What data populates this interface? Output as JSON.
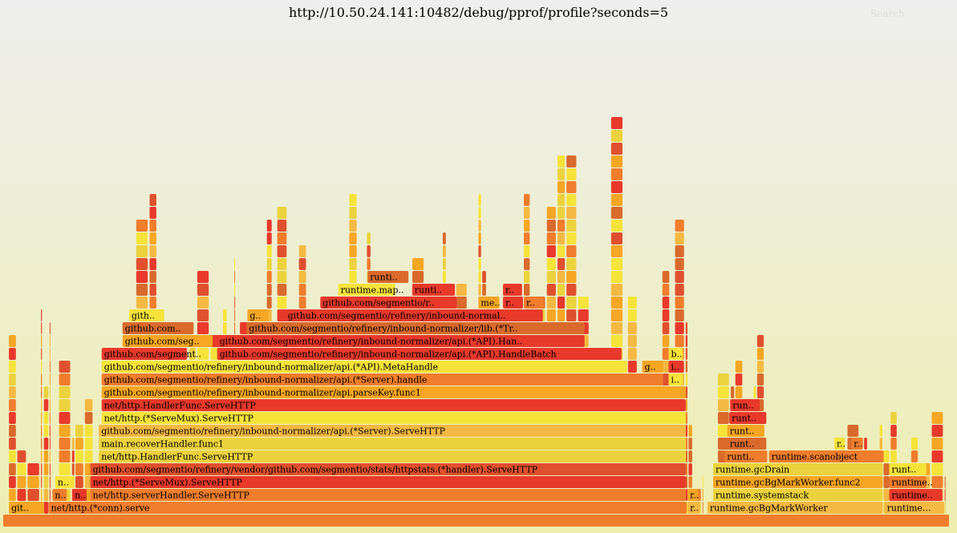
{
  "header": {
    "title": "http://10.50.24.141:10482/debug/pprof/profile?seconds=5",
    "search_label": "Search"
  },
  "colors": {
    "bg_top": "#eeeeee",
    "bg_bottom": "#eeeeb0",
    "palette": [
      "#f5e33a",
      "#f5a623",
      "#ef7d2c",
      "#e8392b",
      "#d96a2c",
      "#ebd23d",
      "#f4b942",
      "#e0502e"
    ]
  },
  "chart_data": {
    "type": "flamegraph",
    "x_unit": "percent_of_samples",
    "labeled_frames": [
      {
        "depth": 0,
        "x": 0.0,
        "w": 100.0,
        "label": "",
        "color": "#ef7d2c"
      },
      {
        "depth": 1,
        "x": 0.6,
        "w": 3.8,
        "label": "git..",
        "color": "#f5a623"
      },
      {
        "depth": 1,
        "x": 4.8,
        "w": 67.5,
        "label": "net/http.(*conn).serve",
        "color": "#ef7d2c"
      },
      {
        "depth": 1,
        "x": 72.3,
        "w": 1.4,
        "label": "r..",
        "color": "#f4b942"
      },
      {
        "depth": 1,
        "x": 74.4,
        "w": 18.6,
        "label": "runtime.gcBgMarkWorker",
        "color": "#f4b942"
      },
      {
        "depth": 1,
        "x": 93.1,
        "w": 6.4,
        "label": "runtime...",
        "color": "#f4b942"
      },
      {
        "depth": 2,
        "x": 5.2,
        "w": 1.6,
        "label": "n..",
        "color": "#ef7d2c"
      },
      {
        "depth": 2,
        "x": 7.3,
        "w": 1.6,
        "label": "n..",
        "color": "#e8392b"
      },
      {
        "depth": 2,
        "x": 9.2,
        "w": 63.0,
        "label": "net/http.serverHandler.ServeHTTP",
        "color": "#ef7d2c"
      },
      {
        "depth": 2,
        "x": 72.3,
        "w": 1.2,
        "label": "r..",
        "color": "#f5a623"
      },
      {
        "depth": 2,
        "x": 75.0,
        "w": 18.0,
        "label": "runtime.systemstack",
        "color": "#ebd23d"
      },
      {
        "depth": 2,
        "x": 93.6,
        "w": 5.7,
        "label": "runtime..",
        "color": "#e8392b"
      },
      {
        "depth": 3,
        "x": 5.5,
        "w": 1.9,
        "label": "n..",
        "color": "#f5e33a"
      },
      {
        "depth": 3,
        "x": 9.2,
        "w": 63.0,
        "label": "net/http.(*ServeMux).ServeHTTP",
        "color": "#e8392b"
      },
      {
        "depth": 3,
        "x": 75.0,
        "w": 18.0,
        "label": "runtime.gcBgMarkWorker.func2",
        "color": "#f5a623"
      },
      {
        "depth": 3,
        "x": 93.6,
        "w": 4.0,
        "label": "runtime..",
        "color": "#ef7d2c"
      },
      {
        "depth": 4,
        "x": 9.2,
        "w": 63.0,
        "label": "github.com/segmentio/refinery/vendor/github.com/segmentio/stats/httpstats.(*handler).ServeHTTP",
        "color": "#e0502e"
      },
      {
        "depth": 4,
        "x": 75.0,
        "w": 18.0,
        "label": "runtime.gcDrain",
        "color": "#ebd23d"
      },
      {
        "depth": 4,
        "x": 93.6,
        "w": 4.0,
        "label": "runt..",
        "color": "#f5e33a"
      },
      {
        "depth": 5,
        "x": 10.1,
        "w": 62.1,
        "label": "net/http.HandlerFunc.ServeHTTP",
        "color": "#ebd23d"
      },
      {
        "depth": 5,
        "x": 76.2,
        "w": 4.6,
        "label": "runti..",
        "color": "#ef7d2c"
      },
      {
        "depth": 5,
        "x": 80.9,
        "w": 12.2,
        "label": "runtime.scanobject",
        "color": "#ef7d2c"
      },
      {
        "depth": 6,
        "x": 10.1,
        "w": 62.1,
        "label": "main.recoverHandler.func1",
        "color": "#ebd23d"
      },
      {
        "depth": 6,
        "x": 76.5,
        "w": 4.2,
        "label": "runt..",
        "color": "#d96a2c"
      },
      {
        "depth": 6,
        "x": 87.8,
        "w": 1.2,
        "label": "r..",
        "color": "#f5e33a"
      },
      {
        "depth": 6,
        "x": 89.6,
        "w": 1.3,
        "label": "r..",
        "color": "#ef7d2c"
      },
      {
        "depth": 7,
        "x": 10.1,
        "w": 62.1,
        "label": "github.com/segmentio/refinery/inbound-normalizer/api.(*Server).ServeHTTP",
        "color": "#f4b942"
      },
      {
        "depth": 7,
        "x": 76.5,
        "w": 4.0,
        "label": "runt..",
        "color": "#f5a623"
      },
      {
        "depth": 8,
        "x": 10.4,
        "w": 61.8,
        "label": "net/http.(*ServeMux).ServeHTTP",
        "color": "#f5e33a"
      },
      {
        "depth": 8,
        "x": 76.7,
        "w": 4.0,
        "label": "runt..",
        "color": "#e8392b"
      },
      {
        "depth": 9,
        "x": 10.4,
        "w": 61.8,
        "label": "net/http.HandlerFunc.ServeHTTP",
        "color": "#e8392b"
      },
      {
        "depth": 9,
        "x": 76.8,
        "w": 3.2,
        "label": "run..",
        "color": "#e8392b"
      },
      {
        "depth": 10,
        "x": 10.4,
        "w": 61.8,
        "label": "github.com/segmentio/refinery/inbound-normalizer/api.parseKey.func1",
        "color": "#f5a623"
      },
      {
        "depth": 11,
        "x": 10.4,
        "w": 59.4,
        "label": "github.com/segmentio/refinery/inbound-normalizer/api.(*Server).handle",
        "color": "#ef7d2c"
      },
      {
        "depth": 11,
        "x": 70.3,
        "w": 1.6,
        "label": "i..",
        "color": "#f5e33a"
      },
      {
        "depth": 12,
        "x": 10.4,
        "w": 55.6,
        "label": "github.com/segmentio/refinery/inbound-normalizer/api.(*API).MetaHandle",
        "color": "#f5e33a"
      },
      {
        "depth": 12,
        "x": 67.5,
        "w": 2.3,
        "label": "g..",
        "color": "#f5a623"
      },
      {
        "depth": 12,
        "x": 70.3,
        "w": 1.6,
        "label": "i..",
        "color": "#e8392b"
      },
      {
        "depth": 13,
        "x": 10.4,
        "w": 9.1,
        "label": "github.com/segment..",
        "color": "#e8392b"
      },
      {
        "depth": 13,
        "x": 22.6,
        "w": 42.8,
        "label": "github.com/segmentio/refinery/inbound-normalizer/api.(*API).HandleBatch",
        "color": "#e8392b"
      },
      {
        "depth": 13,
        "x": 70.3,
        "w": 1.6,
        "label": "b..",
        "color": "#f5e33a"
      },
      {
        "depth": 14,
        "x": 12.6,
        "w": 9.6,
        "label": "github.com/seg..",
        "color": "#f5a623"
      },
      {
        "depth": 14,
        "x": 22.6,
        "w": 38.9,
        "label": "github.com/segmentio/refinery/inbound-normalizer/api.(*API).Han..",
        "color": "#e8392b"
      },
      {
        "depth": 15,
        "x": 12.6,
        "w": 7.6,
        "label": "github.com..",
        "color": "#d96a2c"
      },
      {
        "depth": 15,
        "x": 25.7,
        "w": 35.8,
        "label": "github.com/segmentio/refinery/inbound-normalizer/lib.(*Tr..",
        "color": "#d96a2c"
      },
      {
        "depth": 16,
        "x": 13.3,
        "w": 3.8,
        "label": "gith..",
        "color": "#f5e33a"
      },
      {
        "depth": 16,
        "x": 25.8,
        "w": 2.3,
        "label": "g..",
        "color": "#f5a623"
      },
      {
        "depth": 16,
        "x": 29.8,
        "w": 27.3,
        "label": "github.com/segmentio/refinery/inbound-normal..",
        "color": "#e8392b"
      },
      {
        "depth": 17,
        "x": 33.5,
        "w": 14.5,
        "label": "github.com/segmentio/r..",
        "color": "#e8392b"
      },
      {
        "depth": 17,
        "x": 50.2,
        "w": 2.3,
        "label": "me..",
        "color": "#f5a623"
      },
      {
        "depth": 17,
        "x": 52.8,
        "w": 2.2,
        "label": "r..",
        "color": "#e8392b"
      },
      {
        "depth": 17,
        "x": 55.0,
        "w": 2.2,
        "label": "r..",
        "color": "#ef7d2c"
      },
      {
        "depth": 18,
        "x": 35.4,
        "w": 6.1,
        "label": "runtime.map..",
        "color": "#f5e33a"
      },
      {
        "depth": 18,
        "x": 43.2,
        "w": 4.6,
        "label": "runti..",
        "color": "#e8392b"
      },
      {
        "depth": 18,
        "x": 52.8,
        "w": 2.1,
        "label": "r..",
        "color": "#e8392b"
      },
      {
        "depth": 19,
        "x": 38.5,
        "w": 4.4,
        "label": "runti..",
        "color": "#d96a2c"
      }
    ]
  }
}
